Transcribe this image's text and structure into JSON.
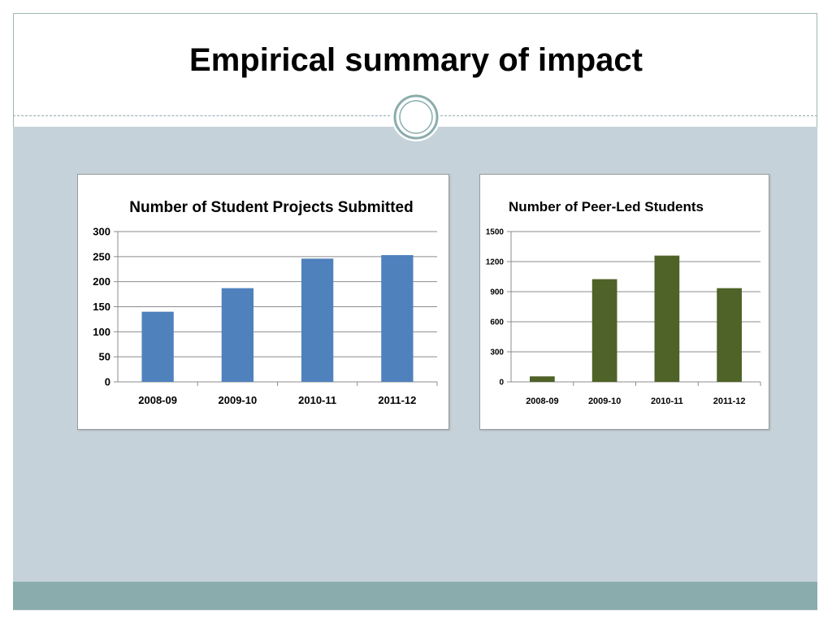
{
  "slide": {
    "title": "Empirical summary of impact"
  },
  "colors": {
    "chart1_bar": "#4f81bd",
    "chart2_bar": "#4f6228",
    "content_band": "#c5d2d9",
    "footer_band": "#8aacad"
  },
  "chart_data": [
    {
      "type": "bar",
      "title": "Number of Student Projects Submitted",
      "categories": [
        "2008-09",
        "2009-10",
        "2010-11",
        "2011-12"
      ],
      "values": [
        140,
        187,
        246,
        253
      ],
      "xlabel": "",
      "ylabel": "",
      "ylim": [
        0,
        300
      ],
      "yticks": [
        0,
        50,
        100,
        150,
        200,
        250,
        300
      ],
      "grid": true,
      "legend": "none"
    },
    {
      "type": "bar",
      "title": "Number of Peer-Led Students",
      "categories": [
        "2008-09",
        "2009-10",
        "2010-11",
        "2011-12"
      ],
      "values": [
        55,
        1025,
        1260,
        935
      ],
      "xlabel": "",
      "ylabel": "",
      "ylim": [
        0,
        1500
      ],
      "yticks": [
        0,
        300,
        600,
        900,
        1200,
        1500
      ],
      "grid": true,
      "legend": "none"
    }
  ]
}
